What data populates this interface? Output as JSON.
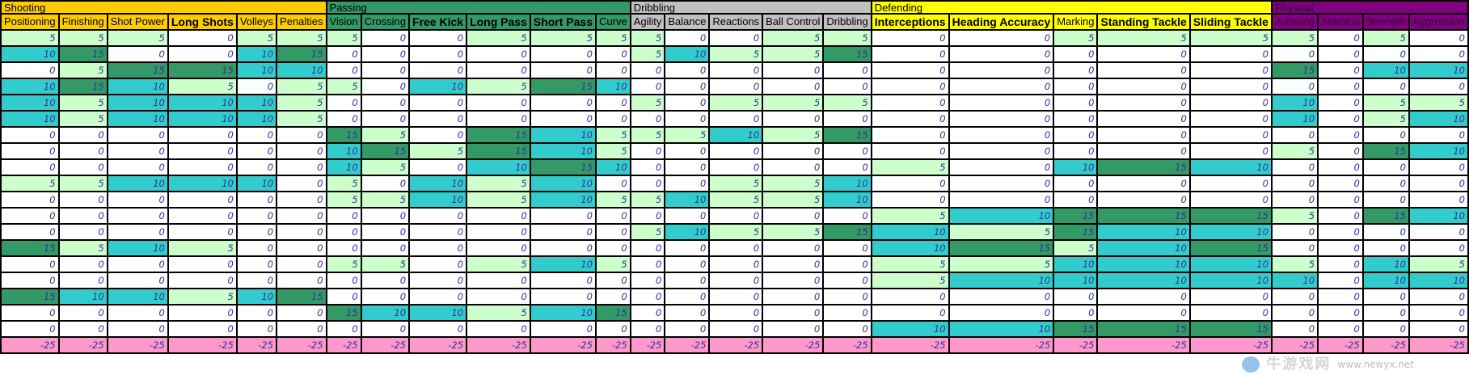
{
  "groups": [
    {
      "label": "Shooting",
      "span": 6,
      "bg": "#ffcc00",
      "fg": "#000000"
    },
    {
      "label": "Passing",
      "span": 6,
      "bg": "#339966",
      "fg": "#000000"
    },
    {
      "label": "Dribbling",
      "span": 5,
      "bg": "#c0c0c0",
      "fg": "#000000"
    },
    {
      "label": "Defending",
      "span": 5,
      "bg": "#ffff00",
      "fg": "#000000"
    },
    {
      "label": "Physical",
      "span": 4,
      "bg": "#800080",
      "fg": "#330033"
    }
  ],
  "columns": [
    {
      "label": "Positioning",
      "group": 0,
      "bold": false
    },
    {
      "label": "Finishing",
      "group": 0,
      "bold": false
    },
    {
      "label": "Shot Power",
      "group": 0,
      "bold": false
    },
    {
      "label": "Long Shots",
      "group": 0,
      "bold": true
    },
    {
      "label": "Volleys",
      "group": 0,
      "bold": false
    },
    {
      "label": "Penalties",
      "group": 0,
      "bold": false
    },
    {
      "label": "Vision",
      "group": 1,
      "bold": false
    },
    {
      "label": "Crossing",
      "group": 1,
      "bold": false
    },
    {
      "label": "Free Kick",
      "group": 1,
      "bold": true
    },
    {
      "label": "Long Pass",
      "group": 1,
      "bold": true
    },
    {
      "label": "Short Pass",
      "group": 1,
      "bold": true
    },
    {
      "label": "Curve",
      "group": 1,
      "bold": false
    },
    {
      "label": "Agility",
      "group": 2,
      "bold": false
    },
    {
      "label": "Balance",
      "group": 2,
      "bold": false
    },
    {
      "label": "Reactions",
      "group": 2,
      "bold": false
    },
    {
      "label": "Ball Control",
      "group": 2,
      "bold": false
    },
    {
      "label": "Dribbling",
      "group": 2,
      "bold": false
    },
    {
      "label": "Interceptions",
      "group": 3,
      "bold": true
    },
    {
      "label": "Heading Accuracy",
      "group": 3,
      "bold": true
    },
    {
      "label": "Marking",
      "group": 3,
      "bold": false
    },
    {
      "label": "Standing Tackle",
      "group": 3,
      "bold": true
    },
    {
      "label": "Sliding Tackle",
      "group": 3,
      "bold": true
    },
    {
      "label": "Jumping",
      "group": 4,
      "bold": false
    },
    {
      "label": "Stamina",
      "group": 4,
      "bold": false
    },
    {
      "label": "Strength",
      "group": 4,
      "bold": false
    },
    {
      "label": "Aggression",
      "group": 4,
      "bold": false
    }
  ],
  "rows": [
    [
      5,
      5,
      5,
      0,
      5,
      5,
      5,
      0,
      0,
      5,
      5,
      5,
      5,
      0,
      0,
      5,
      5,
      0,
      0,
      5,
      5,
      5,
      5,
      0,
      5,
      0
    ],
    [
      10,
      15,
      0,
      0,
      10,
      15,
      0,
      0,
      0,
      0,
      0,
      0,
      5,
      10,
      5,
      5,
      15,
      0,
      0,
      0,
      0,
      0,
      0,
      0,
      0,
      0
    ],
    [
      0,
      5,
      15,
      15,
      10,
      10,
      0,
      0,
      0,
      0,
      0,
      0,
      0,
      0,
      0,
      0,
      0,
      0,
      0,
      0,
      0,
      0,
      15,
      0,
      10,
      10
    ],
    [
      10,
      15,
      10,
      5,
      0,
      5,
      5,
      0,
      10,
      5,
      15,
      10,
      0,
      0,
      0,
      0,
      0,
      0,
      0,
      0,
      0,
      0,
      0,
      0,
      0,
      0
    ],
    [
      10,
      5,
      10,
      10,
      10,
      5,
      0,
      0,
      0,
      0,
      0,
      0,
      5,
      0,
      5,
      5,
      5,
      0,
      0,
      0,
      0,
      0,
      10,
      0,
      5,
      5
    ],
    [
      10,
      5,
      10,
      10,
      10,
      5,
      0,
      0,
      0,
      0,
      0,
      0,
      0,
      0,
      0,
      0,
      0,
      0,
      0,
      0,
      0,
      0,
      10,
      0,
      5,
      10
    ],
    [
      0,
      0,
      0,
      0,
      0,
      0,
      15,
      5,
      0,
      15,
      10,
      5,
      5,
      5,
      10,
      5,
      15,
      0,
      0,
      0,
      0,
      0,
      0,
      0,
      0,
      0
    ],
    [
      0,
      0,
      0,
      0,
      0,
      0,
      10,
      15,
      5,
      15,
      10,
      5,
      0,
      0,
      0,
      0,
      0,
      0,
      0,
      0,
      0,
      0,
      5,
      0,
      15,
      10
    ],
    [
      0,
      0,
      0,
      0,
      0,
      0,
      10,
      5,
      0,
      10,
      15,
      10,
      0,
      0,
      0,
      0,
      0,
      5,
      0,
      10,
      15,
      10,
      0,
      0,
      0,
      0
    ],
    [
      5,
      5,
      10,
      10,
      10,
      0,
      5,
      0,
      10,
      5,
      10,
      0,
      0,
      0,
      5,
      5,
      10,
      0,
      0,
      0,
      0,
      0,
      0,
      0,
      0,
      0
    ],
    [
      0,
      0,
      0,
      0,
      0,
      0,
      5,
      5,
      10,
      5,
      10,
      5,
      5,
      10,
      5,
      5,
      10,
      0,
      0,
      0,
      0,
      0,
      0,
      0,
      0,
      0
    ],
    [
      0,
      0,
      0,
      0,
      0,
      0,
      0,
      0,
      0,
      0,
      0,
      0,
      0,
      0,
      0,
      0,
      0,
      5,
      10,
      15,
      15,
      15,
      5,
      0,
      15,
      10
    ],
    [
      0,
      0,
      0,
      0,
      0,
      0,
      0,
      0,
      0,
      0,
      0,
      0,
      5,
      10,
      5,
      5,
      15,
      10,
      5,
      15,
      10,
      10,
      0,
      0,
      0,
      0
    ],
    [
      15,
      5,
      10,
      5,
      0,
      0,
      0,
      0,
      0,
      0,
      0,
      0,
      0,
      0,
      0,
      0,
      0,
      10,
      15,
      5,
      10,
      15,
      0,
      0,
      0,
      0
    ],
    [
      0,
      0,
      0,
      0,
      0,
      0,
      5,
      5,
      0,
      5,
      10,
      5,
      0,
      0,
      0,
      0,
      0,
      5,
      5,
      10,
      10,
      10,
      5,
      0,
      10,
      5
    ],
    [
      0,
      0,
      0,
      0,
      0,
      0,
      0,
      0,
      0,
      0,
      0,
      0,
      0,
      0,
      0,
      0,
      0,
      5,
      10,
      10,
      10,
      10,
      10,
      0,
      10,
      10
    ],
    [
      15,
      10,
      10,
      5,
      10,
      15,
      0,
      0,
      0,
      0,
      0,
      0,
      0,
      0,
      0,
      0,
      0,
      0,
      0,
      0,
      0,
      0,
      0,
      0,
      0,
      0
    ],
    [
      0,
      0,
      0,
      0,
      0,
      0,
      15,
      10,
      10,
      5,
      10,
      15,
      0,
      0,
      0,
      0,
      0,
      0,
      0,
      0,
      0,
      0,
      0,
      0,
      0,
      0
    ],
    [
      0,
      0,
      0,
      0,
      0,
      0,
      0,
      0,
      0,
      0,
      0,
      0,
      0,
      0,
      0,
      0,
      0,
      10,
      10,
      15,
      15,
      15,
      0,
      0,
      0,
      0
    ],
    [
      -25,
      -25,
      -25,
      -25,
      -25,
      -25,
      -25,
      -25,
      -25,
      -25,
      -25,
      -25,
      -25,
      -25,
      -25,
      -25,
      -25,
      -25,
      -25,
      -25,
      -25,
      -25,
      -25,
      -25,
      -25,
      -25
    ]
  ],
  "value_colors": {
    "0": "#ffffff",
    "5": "#ccffcc",
    "10": "#33cccc",
    "15": "#339966",
    "-25": "#ff99cc"
  },
  "watermark": {
    "title": "牛游戏网",
    "url": "www.newyx.net"
  }
}
